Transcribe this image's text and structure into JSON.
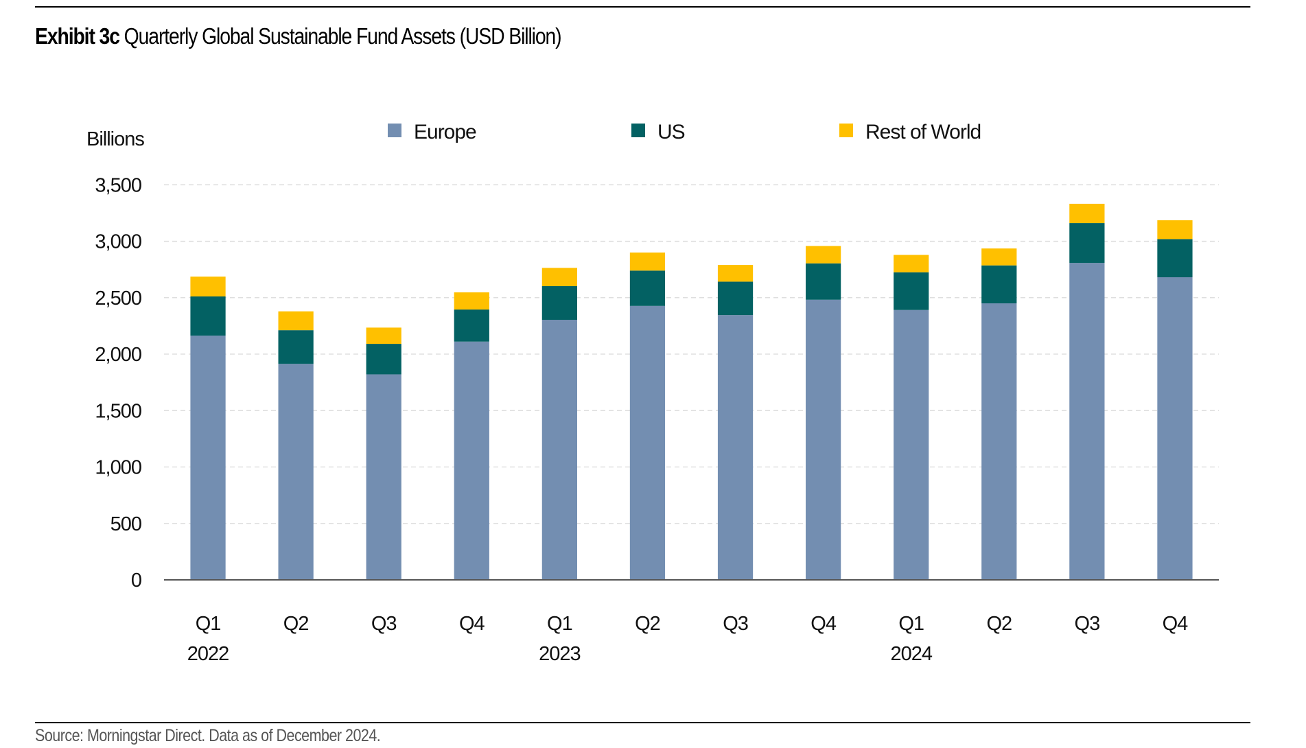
{
  "title": {
    "lead": "Exhibit 3c",
    "text": "Quarterly Global Sustainable Fund Assets (USD Billion)"
  },
  "source": "Source: Morningstar Direct. Data as of December 2024.",
  "chart_data": {
    "type": "bar",
    "stacked": true,
    "title": "Quarterly Global Sustainable Fund Assets (USD Billion)",
    "xlabel": "",
    "ylabel": "Billions",
    "ylim": [
      0,
      3500
    ],
    "yticks": [
      0,
      500,
      1000,
      1500,
      2000,
      2500,
      3000,
      3500
    ],
    "ytick_labels": [
      "0",
      "500",
      "1,000",
      "1,500",
      "2,000",
      "2,500",
      "3,000",
      "3,500"
    ],
    "grid": "horizontal-dashed",
    "legend_position": "top",
    "categories": [
      "Q1 2022",
      "Q2 2022",
      "Q3 2022",
      "Q4 2022",
      "Q1 2023",
      "Q2 2023",
      "Q3 2023",
      "Q4 2023",
      "Q1 2024",
      "Q2 2024",
      "Q3 2024",
      "Q4 2024"
    ],
    "category_labels": [
      {
        "quarter": "Q1",
        "year": "2022"
      },
      {
        "quarter": "Q2",
        "year": ""
      },
      {
        "quarter": "Q3",
        "year": ""
      },
      {
        "quarter": "Q4",
        "year": ""
      },
      {
        "quarter": "Q1",
        "year": "2023"
      },
      {
        "quarter": "Q2",
        "year": ""
      },
      {
        "quarter": "Q3",
        "year": ""
      },
      {
        "quarter": "Q4",
        "year": ""
      },
      {
        "quarter": "Q1",
        "year": "2024"
      },
      {
        "quarter": "Q2",
        "year": ""
      },
      {
        "quarter": "Q3",
        "year": ""
      },
      {
        "quarter": "Q4",
        "year": ""
      }
    ],
    "series": [
      {
        "name": "Europe",
        "color": "#738EB1",
        "values": [
          2164,
          1914,
          1821,
          2111,
          2304,
          2427,
          2346,
          2482,
          2391,
          2450,
          2808,
          2681
        ]
      },
      {
        "name": "US",
        "color": "#036163",
        "values": [
          347,
          298,
          270,
          284,
          298,
          313,
          296,
          322,
          334,
          336,
          353,
          338
        ]
      },
      {
        "name": "Rest of World",
        "color": "#FFC000",
        "values": [
          176,
          167,
          144,
          152,
          162,
          160,
          148,
          154,
          154,
          150,
          171,
          167
        ]
      }
    ]
  }
}
